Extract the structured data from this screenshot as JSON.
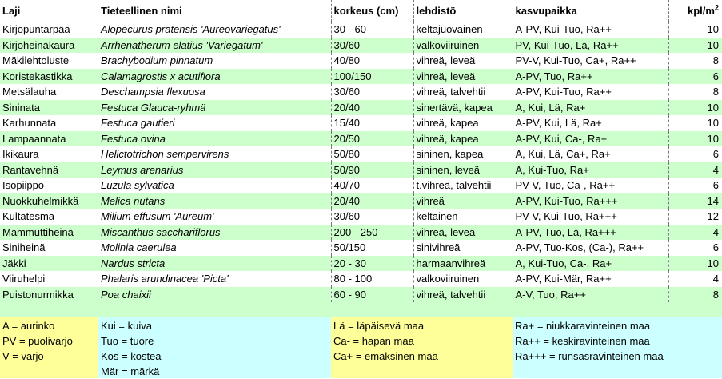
{
  "headers": {
    "laji": "Laji",
    "nimi": "Tieteellinen nimi",
    "korkeus": "korkeus (cm)",
    "lehdisto": "lehdistö",
    "kasvupaikka": "kasvupaikka",
    "kpl": "kpl/m",
    "kpl_sup": "2"
  },
  "rows": [
    {
      "laji": "Kirjopuntarpää",
      "nimi": "Alopecurus pratensis 'Aureovariegatus'",
      "korkeus": "30 - 60",
      "lehdisto": "keltajuovainen",
      "kasvupaikka": "A-PV, Kui-Tuo, Ra++",
      "kpl": "10"
    },
    {
      "laji": "Kirjoheinäkaura",
      "nimi": "Arrhenatherum elatius 'Variegatum'",
      "korkeus": "30/60",
      "lehdisto": "valkoviiruinen",
      "kasvupaikka": "PV, Kui-Tuo, Lä, Ra++",
      "kpl": "10"
    },
    {
      "laji": "Mäkilehtoluste",
      "nimi": "Brachybodium pinnatum",
      "korkeus": "40/80",
      "lehdisto": "vihreä, leveä",
      "kasvupaikka": "PV-V, Kui-Tuo, Ca+, Ra++",
      "kpl": "8"
    },
    {
      "laji": "Koristekastikka",
      "nimi": "Calamagrostis x acutiflora",
      "korkeus": "100/150",
      "lehdisto": "vihreä, leveä",
      "kasvupaikka": "A-PV, Tuo, Ra++",
      "kpl": "6"
    },
    {
      "laji": "Metsälauha",
      "nimi": "Deschampsia flexuosa",
      "korkeus": "30/60",
      "lehdisto": "vihreä, talvehtii",
      "kasvupaikka": "A-PV, Kui-Tuo, Ra++",
      "kpl": "8"
    },
    {
      "laji": "Sininata",
      "nimi": "Festuca Glauca-ryhmä",
      "korkeus": "20/40",
      "lehdisto": "sinertävä, kapea",
      "kasvupaikka": "A, Kui, Lä, Ra+",
      "kpl": "10"
    },
    {
      "laji": "Karhunnata",
      "nimi": "Festuca gautieri",
      "korkeus": "15/40",
      "lehdisto": "vihreä, kapea",
      "kasvupaikka": "A-PV, Kui, Lä, Ra+",
      "kpl": "10"
    },
    {
      "laji": "Lampaannata",
      "nimi": "Festuca ovina",
      "korkeus": "20/50",
      "lehdisto": "vihreä, kapea",
      "kasvupaikka": "A-PV, Kui, Ca-, Ra+",
      "kpl": "10"
    },
    {
      "laji": "Ikikaura",
      "nimi": "Helictotrichon sempervirens",
      "korkeus": "50/80",
      "lehdisto": "sininen, kapea",
      "kasvupaikka": "A, Kui, Lä, Ca+, Ra+",
      "kpl": "6"
    },
    {
      "laji": "Rantavehnä",
      "nimi": "Leymus arenarius",
      "korkeus": "50/90",
      "lehdisto": "sininen, leveä",
      "kasvupaikka": "A, Kui-Tuo, Ra+",
      "kpl": "4"
    },
    {
      "laji": "Isopiippo",
      "nimi": "Luzula sylvatica",
      "korkeus": "40/70",
      "lehdisto": "t.vihreä, talvehtii",
      "kasvupaikka": "PV-V, Tuo, Ca-, Ra++",
      "kpl": "6"
    },
    {
      "laji": "Nuokkuhelmikkä",
      "nimi": "Melica nutans",
      "korkeus": "20/40",
      "lehdisto": "vihreä",
      "kasvupaikka": "A-PV, Kui-Tuo, Ra+++",
      "kpl": "14"
    },
    {
      "laji": "Kultatesma",
      "nimi": "Milium effusum 'Aureum'",
      "korkeus": "30/60",
      "lehdisto": "keltainen",
      "kasvupaikka": "PV-V, Kui-Tuo, Ra+++",
      "kpl": "12"
    },
    {
      "laji": "Mammuttiheinä",
      "nimi": "Miscanthus sacchariflorus",
      "korkeus": "200 - 250",
      "lehdisto": "vihreä, leveä",
      "kasvupaikka": "A-PV, Tuo, Lä, Ra+++",
      "kpl": "4"
    },
    {
      "laji": "Siniheinä",
      "nimi": "Molinia caerulea",
      "korkeus": "50/150",
      "lehdisto": "sinivihreä",
      "kasvupaikka": "A-PV, Tuo-Kos, (Ca-), Ra++",
      "kpl": "6"
    },
    {
      "laji": "Jäkki",
      "nimi": "Nardus stricta",
      "korkeus": "20 - 30",
      "lehdisto": "harmaanvihreä",
      "kasvupaikka": "A, Kui-Tuo, Ca-, Ra+",
      "kpl": "10"
    },
    {
      "laji": "Viiruhelpi",
      "nimi": "Phalaris arundinacea 'Picta'",
      "korkeus": "80 - 100",
      "lehdisto": "valkoviiruinen",
      "kasvupaikka": "A-PV, Kui-Mär, Ra++",
      "kpl": "4"
    },
    {
      "laji": "Puistonurmikka",
      "nimi": "Poa chaixii",
      "korkeus": "60 - 90",
      "lehdisto": "vihreä, talvehtii",
      "kasvupaikka": "A-V, Tuo, Ra++",
      "kpl": "8"
    }
  ],
  "legend": {
    "light": [
      "A = aurinko",
      "PV = puolivarjo",
      "V = varjo"
    ],
    "moisture": [
      "Kui = kuiva",
      "Tuo = tuore",
      "Kos = kostea",
      "Mär = märkä"
    ],
    "soil": [
      "Lä = läpäisevä maa",
      "Ca- = hapan maa",
      "Ca+ = emäksinen maa"
    ],
    "nutrients": [
      "Ra+ = niukkaravinteinen maa",
      "Ra++ = keskiravinteinen maa",
      "Ra+++ = runsasravinteinen maa"
    ]
  },
  "colors": {
    "band": "#ccffcc",
    "legend_yellow": "#ffff99",
    "legend_cyan": "#ccffff"
  }
}
